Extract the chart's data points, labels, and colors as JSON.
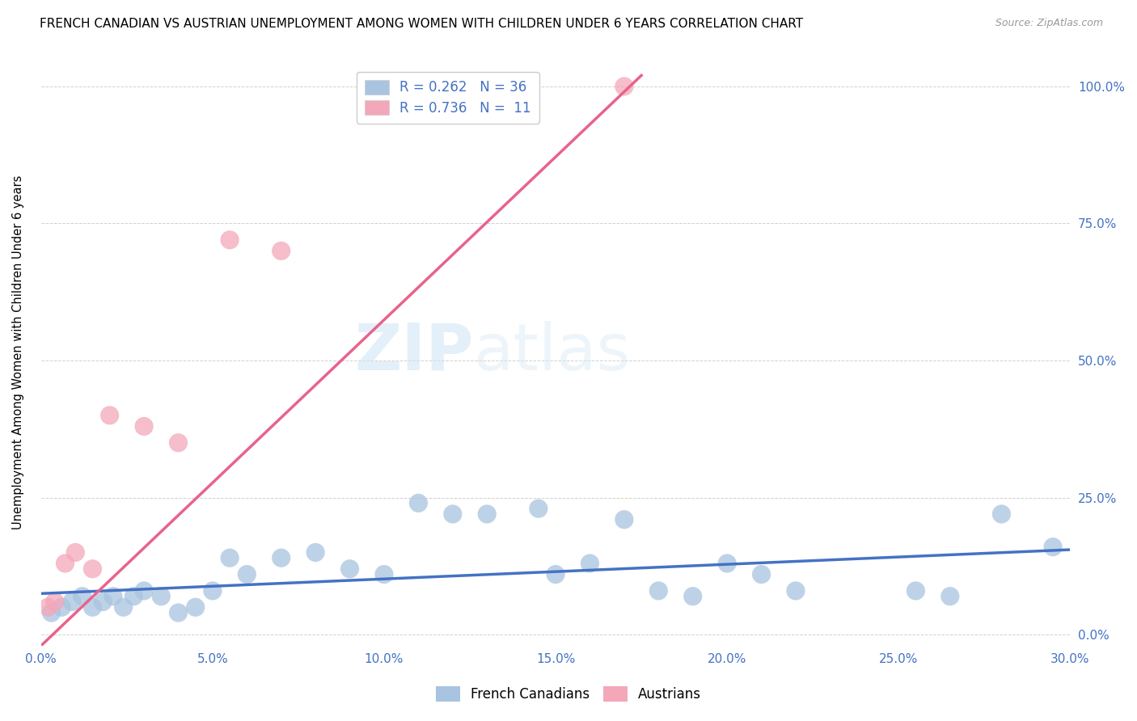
{
  "title": "FRENCH CANADIAN VS AUSTRIAN UNEMPLOYMENT AMONG WOMEN WITH CHILDREN UNDER 6 YEARS CORRELATION CHART",
  "source": "Source: ZipAtlas.com",
  "xlabel_ticks": [
    "0.0%",
    "5.0%",
    "10.0%",
    "15.0%",
    "20.0%",
    "25.0%",
    "30.0%"
  ],
  "xlabel_vals": [
    0.0,
    5.0,
    10.0,
    15.0,
    20.0,
    25.0,
    30.0
  ],
  "ylabel": "Unemployment Among Women with Children Under 6 years",
  "ylabel_right_ticks": [
    "0.0%",
    "25.0%",
    "50.0%",
    "75.0%",
    "100.0%"
  ],
  "ylabel_right_vals": [
    0.0,
    25.0,
    50.0,
    75.0,
    100.0
  ],
  "xlim": [
    0.0,
    30.0
  ],
  "ylim": [
    -2.0,
    105.0
  ],
  "french_canadian_color": "#a8c4e0",
  "austrian_color": "#f4a7b9",
  "trend_blue": "#4472c4",
  "trend_pink": "#e8638c",
  "watermark_zip": "ZIP",
  "watermark_atlas": "atlas",
  "title_fontsize": 11,
  "source_fontsize": 9,
  "french_canadian_x": [
    0.3,
    0.6,
    0.9,
    1.2,
    1.5,
    1.8,
    2.1,
    2.4,
    2.7,
    3.0,
    3.5,
    4.0,
    4.5,
    5.0,
    5.5,
    6.0,
    7.0,
    8.0,
    9.0,
    10.0,
    11.0,
    12.0,
    13.0,
    14.5,
    15.0,
    16.0,
    17.0,
    18.0,
    19.0,
    20.0,
    21.0,
    22.0,
    25.5,
    26.5,
    28.0,
    29.5
  ],
  "french_canadian_y": [
    4.0,
    5.0,
    6.0,
    7.0,
    5.0,
    6.0,
    7.0,
    5.0,
    7.0,
    8.0,
    7.0,
    4.0,
    5.0,
    8.0,
    14.0,
    11.0,
    14.0,
    15.0,
    12.0,
    11.0,
    24.0,
    22.0,
    22.0,
    23.0,
    11.0,
    13.0,
    21.0,
    8.0,
    7.0,
    13.0,
    11.0,
    8.0,
    8.0,
    7.0,
    22.0,
    16.0
  ],
  "austrian_x": [
    0.2,
    0.4,
    0.7,
    1.0,
    1.5,
    2.0,
    3.0,
    4.0,
    5.5,
    7.0,
    17.0
  ],
  "austrian_y": [
    5.0,
    6.0,
    13.0,
    15.0,
    12.0,
    40.0,
    38.0,
    35.0,
    72.0,
    70.0,
    100.0
  ],
  "blue_trend_x0": 0.0,
  "blue_trend_y0": 7.5,
  "blue_trend_x1": 30.0,
  "blue_trend_y1": 15.5,
  "pink_trend_x0": 0.0,
  "pink_trend_y0": -2.0,
  "pink_trend_x1": 17.5,
  "pink_trend_y1": 102.0
}
